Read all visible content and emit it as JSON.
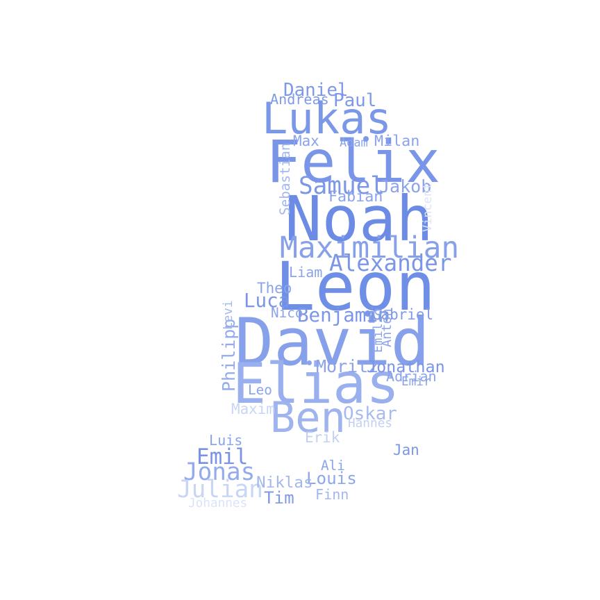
{
  "words": [
    {
      "text": "Leon",
      "weight": 1.0,
      "color": "#6f8fe6"
    },
    {
      "text": "David",
      "weight": 0.97,
      "color": "#86a1ea"
    },
    {
      "text": "Noah",
      "weight": 0.92,
      "color": "#6b8be5"
    },
    {
      "text": "Felix",
      "weight": 0.86,
      "color": "#7995e7"
    },
    {
      "text": "Elias",
      "weight": 0.82,
      "color": "#9ab0ee"
    },
    {
      "text": "Lukas",
      "weight": 0.62,
      "color": "#7b97e7"
    },
    {
      "text": "Ben",
      "weight": 0.6,
      "color": "#9fb4ee"
    },
    {
      "text": "Maximilian",
      "weight": 0.4,
      "color": "#86a1ea"
    },
    {
      "text": "Samuel",
      "weight": 0.3,
      "color": "#7c97e6"
    },
    {
      "text": "Alexander",
      "weight": 0.28,
      "color": "#7b96e6"
    },
    {
      "text": "Jonas",
      "weight": 0.3,
      "color": "#93abed"
    },
    {
      "text": "Julian",
      "weight": 0.3,
      "color": "#c9d5f5"
    },
    {
      "text": "Emil",
      "weight": 0.26,
      "color": "#7893e6"
    },
    {
      "text": "Luca",
      "weight": 0.22,
      "color": "#7a95e6"
    },
    {
      "text": "Benjamin",
      "weight": 0.22,
      "color": "#7b96e6"
    },
    {
      "text": "Oskar",
      "weight": 0.2,
      "color": "#a8bbf0"
    },
    {
      "text": "Daniel",
      "weight": 0.2,
      "color": "#7e99e7"
    },
    {
      "text": "Paul",
      "weight": 0.2,
      "color": "#7e99e7"
    },
    {
      "text": "Jakob",
      "weight": 0.19,
      "color": "#8aa3ea"
    },
    {
      "text": "Moritz",
      "weight": 0.19,
      "color": "#8aa3ea"
    },
    {
      "text": "Jonathan",
      "weight": 0.17,
      "color": "#7a95e6"
    },
    {
      "text": "Philipp",
      "weight": 0.19,
      "color": "#93abed",
      "vertical": true
    },
    {
      "text": "Louis",
      "weight": 0.18,
      "color": "#8ea7ec"
    },
    {
      "text": "Tim",
      "weight": 0.18,
      "color": "#7e99e7"
    },
    {
      "text": "Niklas",
      "weight": 0.16,
      "color": "#a3b7ef"
    },
    {
      "text": "Milan",
      "weight": 0.15,
      "color": "#8aa3ea"
    },
    {
      "text": "Fabian",
      "weight": 0.15,
      "color": "#8aa3ea"
    },
    {
      "text": "Max",
      "weight": 0.14,
      "color": "#8aa3ea"
    },
    {
      "text": "Theo",
      "weight": 0.14,
      "color": "#8aa3ea"
    },
    {
      "text": "Jan",
      "weight": 0.14,
      "color": "#7b96e6"
    },
    {
      "text": "Gabriel",
      "weight": 0.14,
      "color": "#7e99e7"
    },
    {
      "text": "Erik",
      "weight": 0.14,
      "color": "#c2d0f4"
    },
    {
      "text": "Andreas",
      "weight": 0.13,
      "color": "#7e99e7"
    },
    {
      "text": "Liam",
      "weight": 0.13,
      "color": "#8aa3ea"
    },
    {
      "text": "Adrian",
      "weight": 0.13,
      "color": "#8aa3ea"
    },
    {
      "text": "Maxim",
      "weight": 0.14,
      "color": "#c9d5f5"
    },
    {
      "text": "Finn",
      "weight": 0.13,
      "color": "#a3b7ef"
    },
    {
      "text": "Luis",
      "weight": 0.13,
      "color": "#8aa3ea"
    },
    {
      "text": "Ali",
      "weight": 0.12,
      "color": "#8aa3ea"
    },
    {
      "text": "Nico",
      "weight": 0.12,
      "color": "#8aa3ea"
    },
    {
      "text": "Leo",
      "weight": 0.12,
      "color": "#8aa3ea"
    },
    {
      "text": "Anton",
      "weight": 0.11,
      "color": "#8aa3ea",
      "vertical": true
    },
    {
      "text": "Sebastian",
      "weight": 0.12,
      "color": "#a3b7ef",
      "vertical": true
    },
    {
      "text": "Levi",
      "weight": 0.1,
      "color": "#a3b7ef",
      "vertical": true
    },
    {
      "text": "Emilio",
      "weight": 0.1,
      "color": "#8aa3ea",
      "vertical": true
    },
    {
      "text": "Emir",
      "weight": 0.1,
      "color": "#8aa3ea"
    },
    {
      "text": "Hannes",
      "weight": 0.1,
      "color": "#c2d0f4"
    },
    {
      "text": "Adam",
      "weight": 0.09,
      "color": "#8aa3ea"
    },
    {
      "text": "Vincent",
      "weight": 0.09,
      "color": "#dbe3f8",
      "vertical": true
    },
    {
      "text": "Johannes",
      "weight": 0.1,
      "color": "#dbe3f8"
    }
  ]
}
